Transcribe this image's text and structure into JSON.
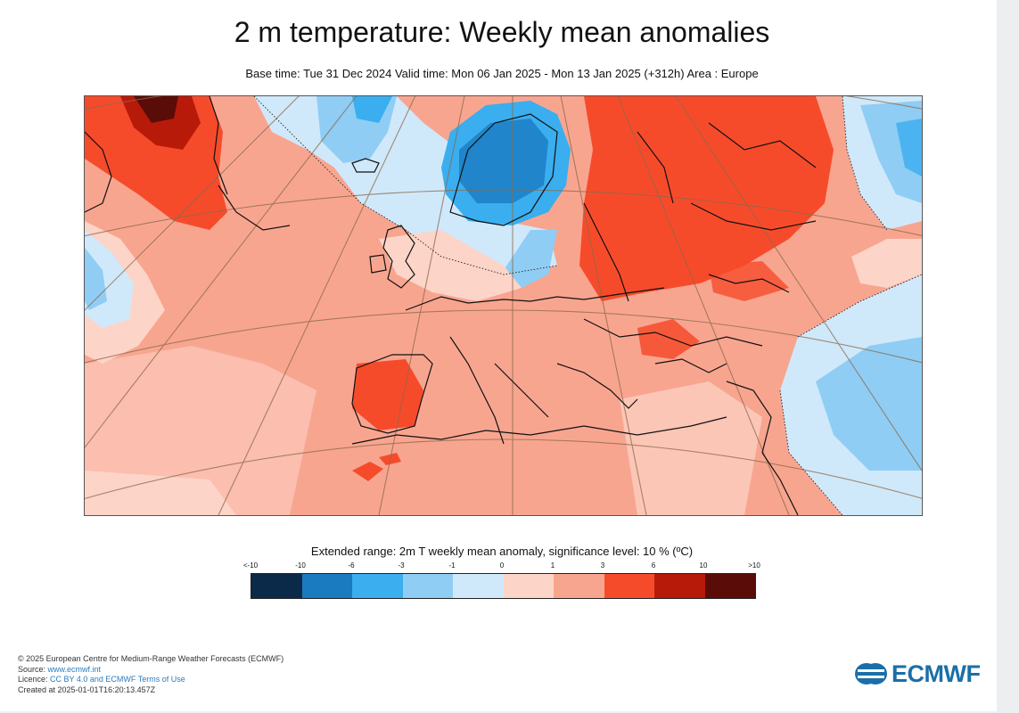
{
  "title": "2 m temperature: Weekly mean anomalies",
  "subtitle": "Base time: Tue 31 Dec 2024 Valid time: Mon 06 Jan 2025 - Mon 13 Jan 2025 (+312h) Area : Europe",
  "legend": {
    "title": "Extended range: 2m T weekly mean anomaly, significance level: 10 % (ºC)",
    "labels": [
      "<-10",
      "-10",
      "-6",
      "-3",
      "-1",
      "0",
      "1",
      "3",
      "6",
      "10",
      ">10"
    ],
    "colors": [
      "#0b2a49",
      "#1a7bc0",
      "#3aaeef",
      "#8fcdf5",
      "#cfe9fb",
      "#fdd4c8",
      "#f8a590",
      "#f64b2b",
      "#b81a0a",
      "#5a0d08"
    ]
  },
  "footer": {
    "copyright": "© 2025 European Centre for Medium-Range Weather Forecasts (ECMWF)",
    "source_label": "Source: ",
    "source_link": "www.ecmwf.int",
    "licence_label": "Licence: ",
    "licence_link": "CC BY 4.0 and ECMWF Terms of Use",
    "created": "Created at 2025-01-01T16:20:13.457Z"
  },
  "logo": {
    "text": "ECMWF"
  }
}
